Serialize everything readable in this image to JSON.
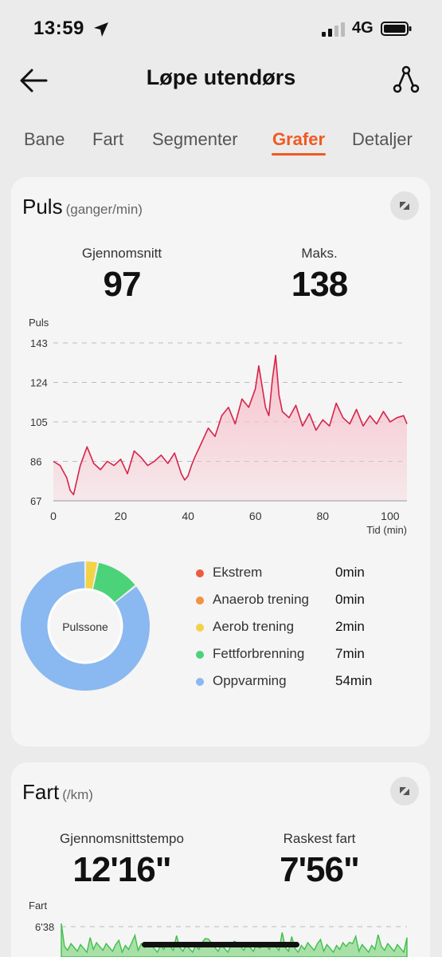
{
  "status_bar": {
    "time": "13:59",
    "network": "4G"
  },
  "nav": {
    "title": "Løpe utendørs"
  },
  "tabs": [
    {
      "label": "Bane",
      "active": false
    },
    {
      "label": "Fart",
      "active": false
    },
    {
      "label": "Segmenter",
      "active": false
    },
    {
      "label": "Grafer",
      "active": true
    },
    {
      "label": "Detaljer",
      "active": false
    }
  ],
  "colors": {
    "accent": "#f05a22",
    "heart_line": "#d8234a",
    "heart_fill": "#f6c2cc",
    "speed_line": "#3fc04a"
  },
  "pulse_card": {
    "title": "Puls",
    "unit": "(ganger/min)",
    "avg_label": "Gjennomsnitt",
    "avg_value": "97",
    "max_label": "Maks.",
    "max_value": "138",
    "donut_label": "Pulssone"
  },
  "zones": [
    {
      "name": "Ekstrem",
      "value": "0min",
      "minutes": 0,
      "color": "#ef5a3f"
    },
    {
      "name": "Anaerob trening",
      "value": "0min",
      "minutes": 0,
      "color": "#f2913f"
    },
    {
      "name": "Aerob trening",
      "value": "2min",
      "minutes": 2,
      "color": "#f2d348"
    },
    {
      "name": "Fettforbrenning",
      "value": "7min",
      "minutes": 7,
      "color": "#4cd37a"
    },
    {
      "name": "Oppvarming",
      "value": "54min",
      "minutes": 54,
      "color": "#8ab8f0"
    }
  ],
  "speed_card": {
    "title": "Fart",
    "unit": "(/km)",
    "avg_label": "Gjennomsnittstempo",
    "avg_value": "12'16\"",
    "max_label": "Raskest fart",
    "max_value": "7'56\""
  },
  "chart_data": [
    {
      "type": "area",
      "ylabel": "Puls",
      "xlabel": "Tid (min)",
      "y_ticks": [
        "143",
        "124",
        "105",
        "86",
        "67"
      ],
      "x_ticks": [
        "0",
        "20",
        "40",
        "60",
        "80",
        "100"
      ],
      "ylim": [
        67,
        143
      ],
      "xlim": [
        0,
        105
      ],
      "grid": true,
      "series": [
        {
          "x": [
            0,
            2,
            4,
            5,
            6,
            8,
            10,
            12,
            14,
            16,
            18,
            20,
            22,
            24,
            26,
            28,
            30,
            32,
            34,
            36,
            38,
            39,
            40,
            41,
            42,
            44,
            46,
            48,
            50,
            52,
            54,
            56,
            58,
            60,
            61,
            62,
            63,
            64,
            65,
            66,
            67,
            68,
            70,
            72,
            74,
            76,
            78,
            80,
            82,
            84,
            86,
            88,
            90,
            92,
            94,
            96,
            98,
            100,
            102,
            104,
            105
          ],
          "y": [
            86,
            84,
            78,
            72,
            70,
            84,
            93,
            85,
            82,
            86,
            84,
            87,
            80,
            91,
            88,
            84,
            86,
            89,
            85,
            90,
            80,
            77,
            79,
            84,
            88,
            95,
            102,
            98,
            108,
            112,
            104,
            116,
            112,
            121,
            132,
            122,
            112,
            108,
            125,
            137,
            118,
            110,
            107,
            113,
            103,
            109,
            101,
            106,
            103,
            114,
            107,
            104,
            111,
            103,
            108,
            104,
            110,
            105,
            107,
            108,
            104
          ]
        }
      ]
    },
    {
      "type": "area",
      "ylabel": "Fart",
      "y_ticks": [
        "6'38"
      ],
      "grid": true
    }
  ]
}
